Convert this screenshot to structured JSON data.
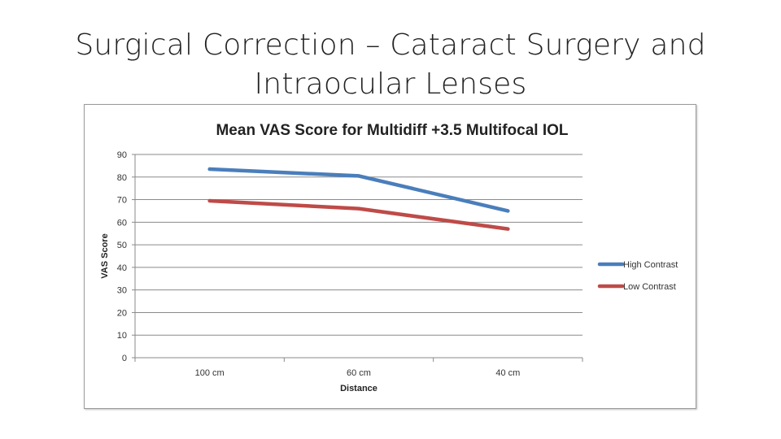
{
  "slide": {
    "title": "Surgical Correction – Cataract Surgery and Intraocular Lenses"
  },
  "chart_data": {
    "type": "line",
    "title": "Mean VAS Score for Multidiff +3.5 Multifocal IOL",
    "xlabel": "Distance",
    "ylabel": "VAS Score",
    "categories": [
      "100 cm",
      "60 cm",
      "40 cm"
    ],
    "ylim": [
      0,
      90
    ],
    "yticks": [
      0,
      10,
      20,
      30,
      40,
      50,
      60,
      70,
      80,
      90
    ],
    "grid": true,
    "legend": "right",
    "series": [
      {
        "name": "High Contrast",
        "values": [
          83.5,
          80.5,
          65
        ],
        "color": "#4a7ebb"
      },
      {
        "name": "Low Contrast",
        "values": [
          69.5,
          66,
          57
        ],
        "color": "#be4b48"
      }
    ]
  }
}
